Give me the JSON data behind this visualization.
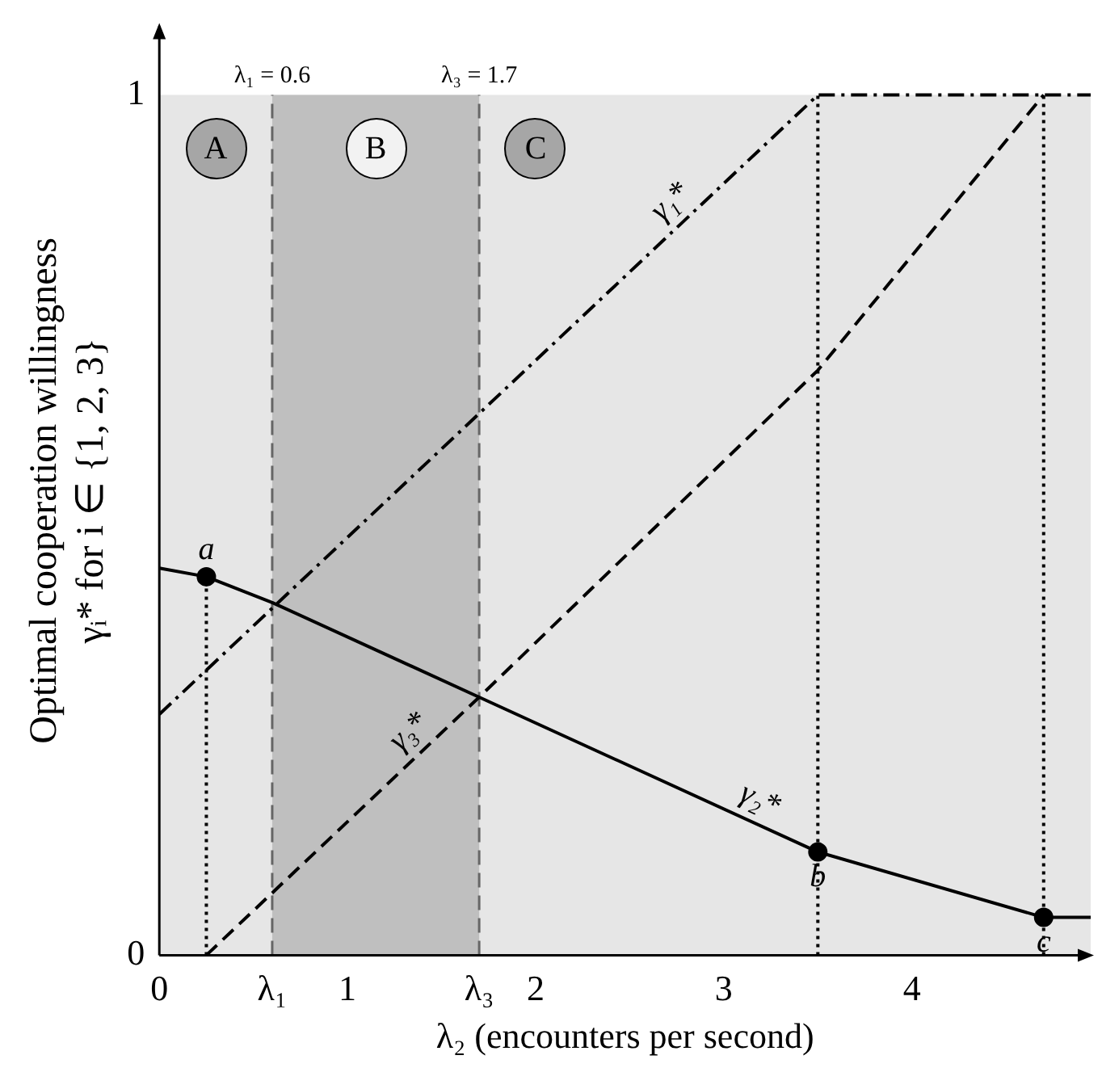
{
  "chart_data": {
    "type": "line",
    "xlabel": "λ₂ (encounters per second)",
    "ylabel": "Optimal cooperation willingness\nγᵢ* for i ∈ {1, 2, 3}",
    "xlim": [
      0,
      4.95
    ],
    "ylim": [
      0,
      1.08
    ],
    "xticks": [
      0,
      {
        "value": 0.6,
        "label": "λ₁"
      },
      1,
      {
        "value": 1.7,
        "label": "λ₃"
      },
      2,
      3,
      4
    ],
    "yticks": [
      0,
      1
    ],
    "grid": false,
    "legend": false,
    "marker": "none",
    "bands": [
      {
        "axis": "y",
        "from": 0,
        "to": 1,
        "color": "#e6e6e6"
      },
      {
        "axis": "x",
        "from": 0.6,
        "to": 1.7,
        "color": "#bfbfbf"
      }
    ],
    "ref_lines": [
      {
        "axis": "x",
        "value": 0.6,
        "label": "λ₁ = 0.6",
        "color": "#666666",
        "line_style": "dashed"
      },
      {
        "axis": "x",
        "value": 1.7,
        "label": "λ₃ = 1.7",
        "color": "#666666",
        "line_style": "dashed"
      }
    ],
    "annotations": [
      "A",
      "B",
      "C"
    ],
    "series": [
      {
        "name": "γ₁*",
        "color": "#000000",
        "line_style": "dashdot",
        "x": [
          0,
          3.5,
          4.95
        ],
        "values": [
          0.28,
          1,
          1
        ]
      },
      {
        "name": "γ₃*",
        "color": "#000000",
        "line_style": "dashed",
        "x": [
          0.25,
          1.7,
          3.5,
          4.7
        ],
        "values": [
          0,
          0.3,
          0.68,
          1
        ]
      },
      {
        "name": "γ₂*",
        "color": "#000000",
        "line_style": "solid",
        "x": [
          0,
          0.25,
          0.6,
          1.7,
          3.5,
          4.7,
          4.95
        ],
        "values": [
          0.45,
          0.44,
          0.41,
          0.3,
          0.12,
          0.044,
          0.044
        ]
      },
      {
        "color": "#000000",
        "line_style": "dotted",
        "x": [
          0.25,
          0.25
        ],
        "values": [
          0,
          0.44
        ]
      },
      {
        "color": "#000000",
        "line_style": "dotted",
        "x": [
          3.5,
          3.5
        ],
        "values": [
          0,
          1
        ]
      },
      {
        "color": "#000000",
        "line_style": "dotted",
        "x": [
          4.7,
          4.7
        ],
        "values": [
          0,
          1
        ]
      },
      {
        "type": "scatter",
        "color": "#000000",
        "marker": "circle",
        "x": [
          0.25,
          3.5,
          4.7
        ],
        "values": [
          0.44,
          0.12,
          0.044
        ],
        "value_labels": [
          "a",
          "b",
          "c"
        ]
      }
    ]
  }
}
